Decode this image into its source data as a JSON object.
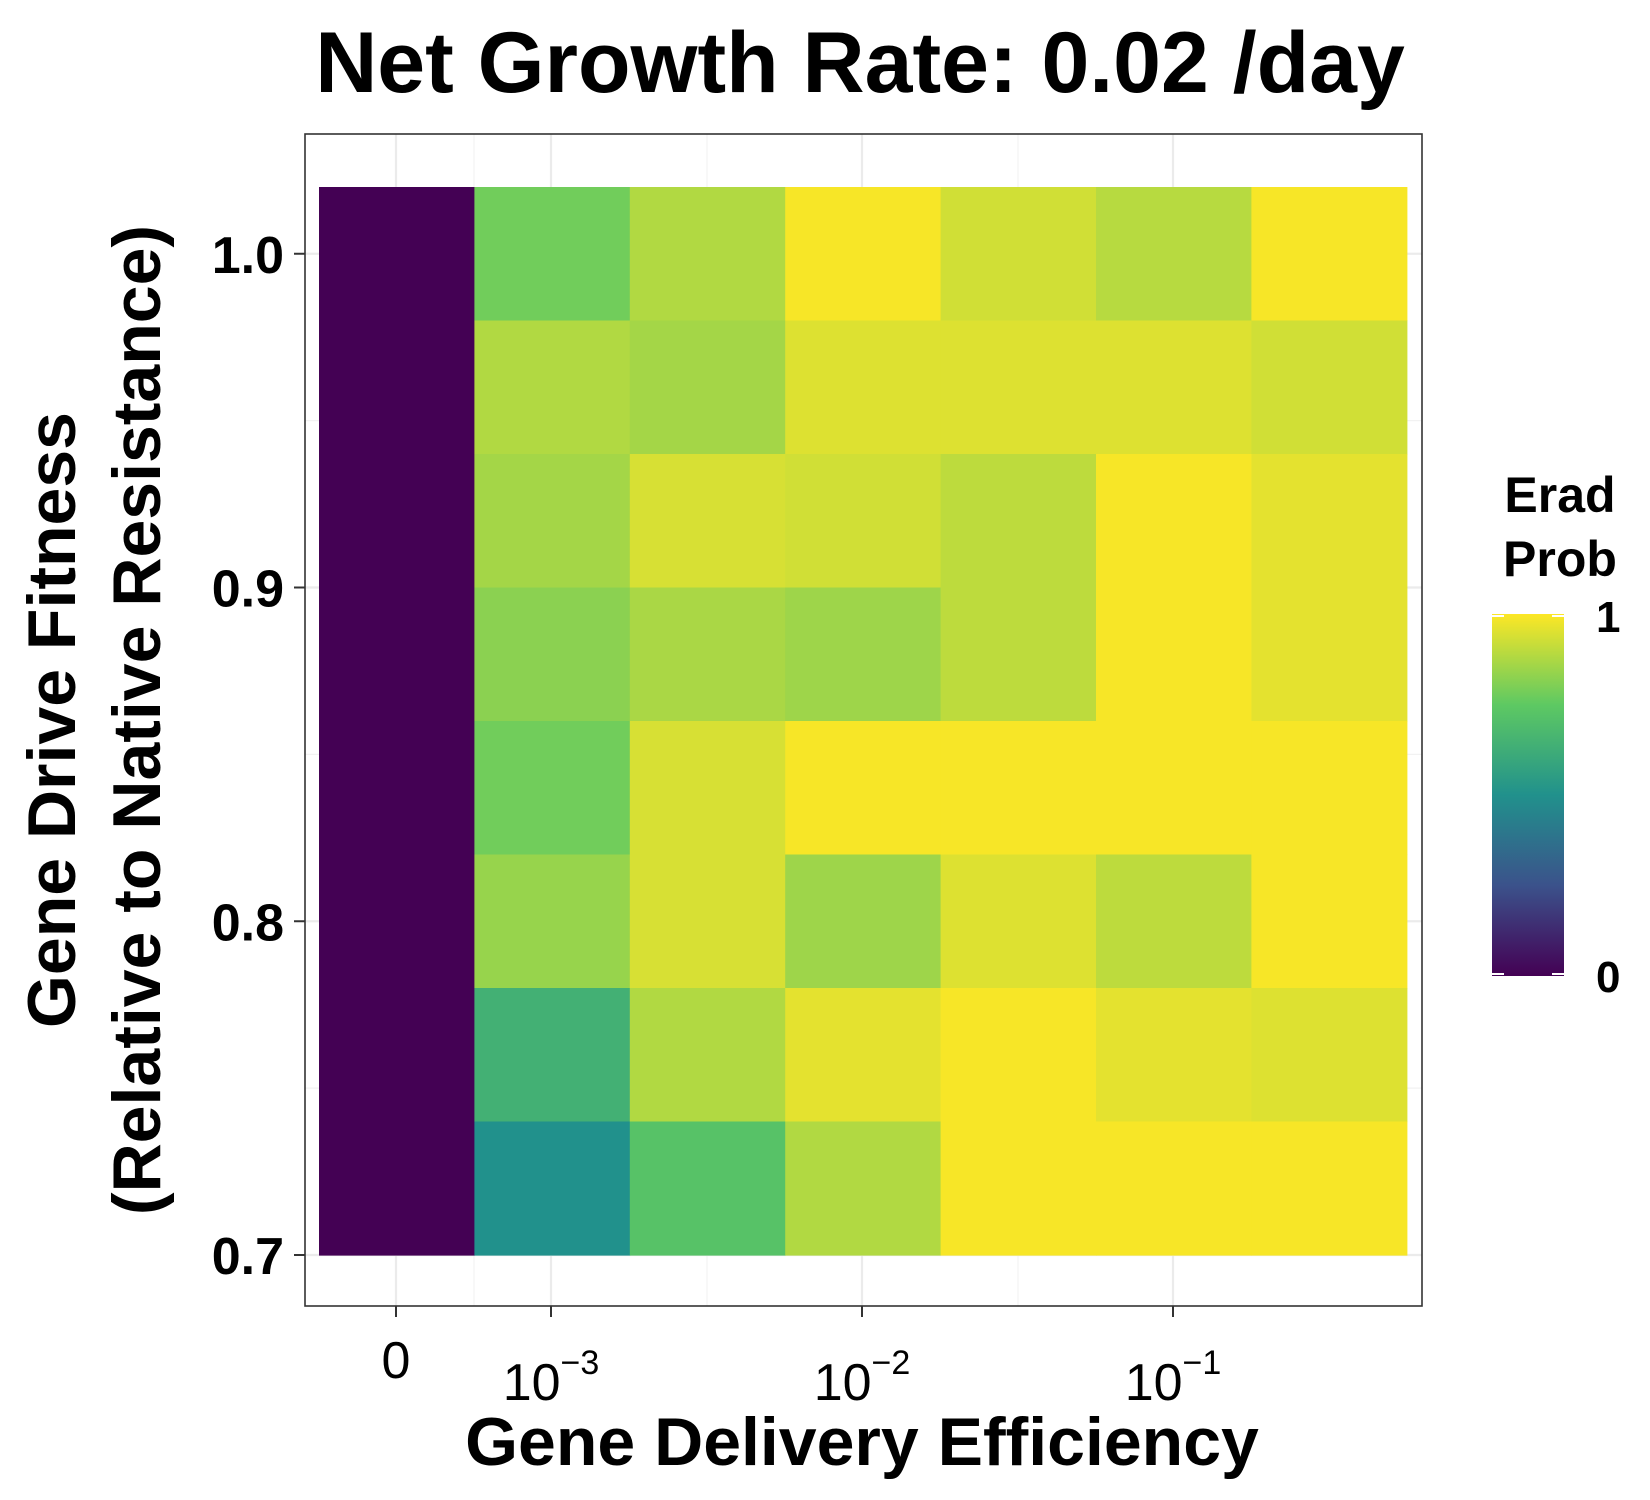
{
  "chart_data": {
    "type": "heatmap",
    "title": "Net Growth Rate: 0.02 /day",
    "xlabel": "Gene Delivery Efficiency",
    "ylabel_line1": "Gene Drive Fitness",
    "ylabel_line2": "(Relative to Native Resistance)",
    "x_ticks": [
      {
        "base": "0",
        "exp": ""
      },
      {
        "base": "10",
        "exp": "−3"
      },
      {
        "base": "10",
        "exp": "−2"
      },
      {
        "base": "10",
        "exp": "−1"
      }
    ],
    "y_ticks": [
      "0.7",
      "0.8",
      "0.9",
      "1.0"
    ],
    "y_tick_values": [
      0.7,
      0.8,
      0.9,
      1.0
    ],
    "y_values": [
      1.0,
      0.96,
      0.92,
      0.88,
      0.84,
      0.8,
      0.76,
      0.72
    ],
    "x_columns": 7,
    "values": [
      [
        0.0,
        0.78,
        0.88,
        0.99,
        0.93,
        0.89,
        0.99
      ],
      [
        0.0,
        0.88,
        0.86,
        0.95,
        0.95,
        0.95,
        0.93
      ],
      [
        0.0,
        0.86,
        0.94,
        0.93,
        0.9,
        0.99,
        0.96
      ],
      [
        0.0,
        0.82,
        0.87,
        0.85,
        0.9,
        0.99,
        0.96
      ],
      [
        0.0,
        0.78,
        0.94,
        0.99,
        0.99,
        0.99,
        0.99
      ],
      [
        0.0,
        0.84,
        0.94,
        0.85,
        0.95,
        0.9,
        0.99
      ],
      [
        0.0,
        0.64,
        0.88,
        0.96,
        0.99,
        0.96,
        0.95
      ],
      [
        0.0,
        0.5,
        0.72,
        0.88,
        0.99,
        0.99,
        0.99
      ]
    ],
    "grid": true,
    "legend": {
      "title_line1": "Erad",
      "title_line2": "Prob",
      "min_label": "0",
      "max_label": "1",
      "position": "right"
    },
    "colormap": [
      "#440154",
      "#3b528b",
      "#21918c",
      "#5ec962",
      "#fde725"
    ]
  }
}
